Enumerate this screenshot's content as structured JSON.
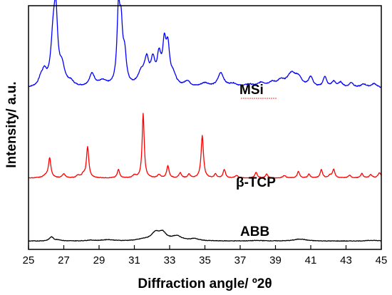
{
  "chart_data": {
    "type": "line",
    "xlabel": "Diffraction angle/ º2θ",
    "ylabel": "Intensity/ a.u.",
    "xlim": [
      25,
      45
    ],
    "xticks": [
      25,
      27,
      29,
      31,
      33,
      35,
      37,
      39,
      41,
      43,
      45
    ],
    "grid": false,
    "legend": "none",
    "series": [
      {
        "name": "MSi",
        "color": "#0000ff",
        "baseline": 3.5,
        "noise": 0.02,
        "peaks": [
          [
            25.7,
            0.1,
            0.15
          ],
          [
            25.9,
            0.18,
            0.15
          ],
          [
            26.4,
            0.65,
            0.16
          ],
          [
            26.55,
            0.85,
            0.12
          ],
          [
            26.9,
            0.25,
            0.2
          ],
          [
            27.4,
            0.06,
            0.2
          ],
          [
            28.6,
            0.18,
            0.18
          ],
          [
            29.2,
            0.08,
            0.3
          ],
          [
            30.1,
            1.0,
            0.1
          ],
          [
            30.25,
            0.7,
            0.1
          ],
          [
            30.45,
            0.4,
            0.12
          ],
          [
            31.4,
            0.18,
            0.25
          ],
          [
            31.7,
            0.32,
            0.15
          ],
          [
            32.05,
            0.32,
            0.14
          ],
          [
            32.4,
            0.38,
            0.14
          ],
          [
            32.7,
            0.52,
            0.12
          ],
          [
            32.9,
            0.48,
            0.12
          ],
          [
            33.2,
            0.15,
            0.2
          ],
          [
            34.0,
            0.08,
            0.2
          ],
          [
            35.0,
            0.06,
            0.3
          ],
          [
            35.9,
            0.2,
            0.2
          ],
          [
            36.6,
            0.05,
            0.3
          ],
          [
            37.5,
            0.04,
            0.3
          ],
          [
            38.2,
            0.06,
            0.25
          ],
          [
            38.8,
            0.06,
            0.25
          ],
          [
            39.3,
            0.08,
            0.25
          ],
          [
            39.9,
            0.18,
            0.3
          ],
          [
            40.3,
            0.12,
            0.25
          ],
          [
            41.0,
            0.14,
            0.15
          ],
          [
            41.8,
            0.15,
            0.12
          ],
          [
            42.3,
            0.08,
            0.15
          ],
          [
            42.7,
            0.07,
            0.15
          ],
          [
            43.3,
            0.07,
            0.15
          ],
          [
            44.0,
            0.05,
            0.2
          ],
          [
            44.6,
            0.06,
            0.2
          ]
        ]
      },
      {
        "name": "β-TCP",
        "color": "#ff0000",
        "baseline": 1.55,
        "noise": 0.012,
        "peaks": [
          [
            26.0,
            0.04,
            0.2
          ],
          [
            26.2,
            0.3,
            0.08
          ],
          [
            27.0,
            0.06,
            0.1
          ],
          [
            27.8,
            0.04,
            0.1
          ],
          [
            28.1,
            0.05,
            0.1
          ],
          [
            28.35,
            0.48,
            0.08
          ],
          [
            30.1,
            0.13,
            0.08
          ],
          [
            31.0,
            0.04,
            0.1
          ],
          [
            31.5,
            1.0,
            0.07
          ],
          [
            32.4,
            0.05,
            0.1
          ],
          [
            32.9,
            0.19,
            0.08
          ],
          [
            33.6,
            0.08,
            0.08
          ],
          [
            34.1,
            0.06,
            0.08
          ],
          [
            34.85,
            0.66,
            0.08
          ],
          [
            35.6,
            0.06,
            0.08
          ],
          [
            36.1,
            0.13,
            0.08
          ],
          [
            36.8,
            0.04,
            0.1
          ],
          [
            37.9,
            0.09,
            0.08
          ],
          [
            38.5,
            0.06,
            0.08
          ],
          [
            39.5,
            0.04,
            0.1
          ],
          [
            40.3,
            0.1,
            0.08
          ],
          [
            40.9,
            0.06,
            0.08
          ],
          [
            41.6,
            0.13,
            0.08
          ],
          [
            42.1,
            0.04,
            0.1
          ],
          [
            42.3,
            0.13,
            0.08
          ],
          [
            43.2,
            0.04,
            0.1
          ],
          [
            43.9,
            0.07,
            0.08
          ],
          [
            44.4,
            0.05,
            0.1
          ],
          [
            44.9,
            0.08,
            0.1
          ]
        ]
      },
      {
        "name": "ABB",
        "color": "#000000",
        "baseline": 0.18,
        "noise": 0.012,
        "peaks": [
          [
            26.3,
            0.16,
            0.14
          ],
          [
            26.7,
            0.04,
            0.2
          ],
          [
            28.5,
            0.03,
            0.3
          ],
          [
            29.5,
            0.05,
            0.4
          ],
          [
            31.5,
            0.05,
            0.4
          ],
          [
            32.2,
            0.3,
            0.3
          ],
          [
            32.6,
            0.28,
            0.25
          ],
          [
            33.4,
            0.18,
            0.35
          ],
          [
            34.4,
            0.08,
            0.3
          ],
          [
            38.0,
            0.02,
            0.5
          ],
          [
            40.4,
            0.08,
            0.4
          ],
          [
            44.5,
            0.03,
            0.4
          ]
        ]
      }
    ]
  },
  "labels": {
    "msi": "MSi",
    "tcp": "β-TCP",
    "abb": "ABB"
  }
}
